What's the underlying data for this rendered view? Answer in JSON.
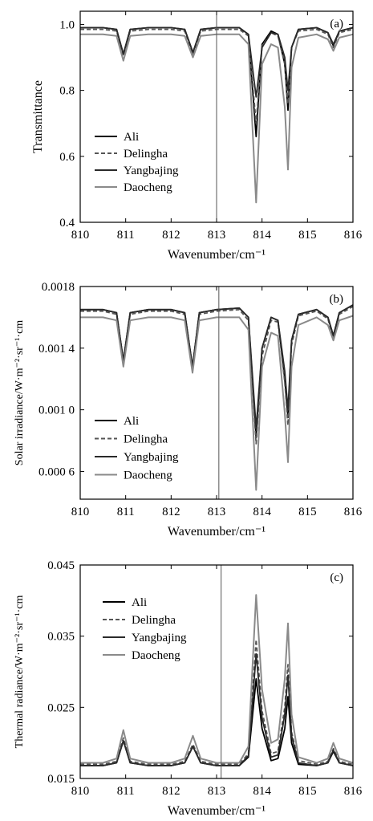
{
  "colors": {
    "Ali": "#000000",
    "Delingha": "#555555",
    "Yangbajing": "#2a2a2a",
    "Daocheng": "#8a8a8a"
  },
  "chart_data": [
    {
      "type": "line",
      "panel_label": "(a)",
      "xlabel": "Wavenumber/cm⁻¹",
      "ylabel": "Transmittance",
      "xlim": [
        810,
        816
      ],
      "ylim": [
        0.4,
        1.04
      ],
      "xticks": [
        810,
        811,
        812,
        813,
        814,
        815,
        816
      ],
      "xtick_labels": [
        "810",
        "811",
        "812",
        "813",
        "814",
        "815",
        "816"
      ],
      "yticks": [
        0.4,
        0.6,
        0.8,
        1.0
      ],
      "ytick_labels": [
        "0.4",
        "0.6",
        "0.8",
        "1.0"
      ],
      "vline": 813.0,
      "grid": false,
      "legend_position": "lower-left",
      "x": [
        810.0,
        810.5,
        810.8,
        810.95,
        811.1,
        811.5,
        812.0,
        812.3,
        812.48,
        812.65,
        813.0,
        813.5,
        813.7,
        813.87,
        814.0,
        814.2,
        814.35,
        814.5,
        814.57,
        814.65,
        814.8,
        815.2,
        815.45,
        815.57,
        815.7,
        816.0
      ],
      "series": [
        {
          "name": "Ali",
          "dash": "",
          "values": [
            0.99,
            0.99,
            0.985,
            0.91,
            0.985,
            0.99,
            0.99,
            0.985,
            0.915,
            0.985,
            0.99,
            0.99,
            0.97,
            0.66,
            0.94,
            0.98,
            0.97,
            0.88,
            0.74,
            0.93,
            0.985,
            0.99,
            0.975,
            0.935,
            0.98,
            0.99
          ]
        },
        {
          "name": "Delingha",
          "dash": "5,3",
          "values": [
            0.985,
            0.985,
            0.98,
            0.905,
            0.98,
            0.985,
            0.985,
            0.98,
            0.91,
            0.98,
            0.985,
            0.985,
            0.965,
            0.7,
            0.935,
            0.975,
            0.965,
            0.88,
            0.76,
            0.93,
            0.98,
            0.985,
            0.97,
            0.93,
            0.975,
            0.985
          ]
        },
        {
          "name": "Yangbajing",
          "dash": "",
          "values": [
            0.99,
            0.99,
            0.985,
            0.91,
            0.985,
            0.99,
            0.99,
            0.985,
            0.915,
            0.985,
            0.99,
            0.99,
            0.97,
            0.78,
            0.93,
            0.975,
            0.97,
            0.9,
            0.8,
            0.93,
            0.985,
            0.99,
            0.975,
            0.94,
            0.98,
            0.99
          ]
        },
        {
          "name": "Daocheng",
          "dash": "",
          "values": [
            0.97,
            0.97,
            0.965,
            0.89,
            0.965,
            0.97,
            0.97,
            0.965,
            0.9,
            0.965,
            0.97,
            0.97,
            0.94,
            0.46,
            0.88,
            0.94,
            0.93,
            0.75,
            0.56,
            0.87,
            0.96,
            0.97,
            0.955,
            0.92,
            0.96,
            0.97
          ]
        }
      ]
    },
    {
      "type": "line",
      "panel_label": "(b)",
      "xlabel": "Wavenumber/cm⁻¹",
      "ylabel": "Solar irradiance/W·m⁻²·sr⁻¹·cm",
      "xlim": [
        810,
        816
      ],
      "ylim": [
        0.00042,
        0.0018
      ],
      "xticks": [
        810,
        811,
        812,
        813,
        814,
        815,
        816
      ],
      "xtick_labels": [
        "810",
        "811",
        "812",
        "813",
        "814",
        "815",
        "816"
      ],
      "yticks": [
        0.0006,
        0.001,
        0.0014,
        0.0018
      ],
      "ytick_labels": [
        "0.000 6",
        "0.001 0",
        "0.001 4",
        "0.0018"
      ],
      "vline": 813.05,
      "grid": false,
      "legend_position": "lower-left",
      "x": [
        810.0,
        810.5,
        810.8,
        810.95,
        811.1,
        811.5,
        812.0,
        812.3,
        812.47,
        812.62,
        813.0,
        813.5,
        813.7,
        813.87,
        814.0,
        814.2,
        814.35,
        814.5,
        814.57,
        814.65,
        814.8,
        815.2,
        815.45,
        815.57,
        815.7,
        816.0
      ],
      "series": [
        {
          "name": "Ali",
          "dash": "",
          "values": [
            0.00165,
            0.00165,
            0.00163,
            0.00132,
            0.00163,
            0.00165,
            0.00165,
            0.00163,
            0.00128,
            0.00163,
            0.00165,
            0.00166,
            0.0016,
            0.00082,
            0.0014,
            0.0016,
            0.00158,
            0.0012,
            0.00095,
            0.00145,
            0.00162,
            0.00165,
            0.0016,
            0.00148,
            0.00163,
            0.00168
          ]
        },
        {
          "name": "Delingha",
          "dash": "5,3",
          "values": [
            0.00164,
            0.00164,
            0.00162,
            0.00131,
            0.00162,
            0.00164,
            0.00164,
            0.00162,
            0.00127,
            0.00162,
            0.00164,
            0.00165,
            0.00158,
            0.00078,
            0.00135,
            0.00158,
            0.00157,
            0.00118,
            0.0009,
            0.00142,
            0.00161,
            0.00164,
            0.00159,
            0.00146,
            0.00162,
            0.00167
          ]
        },
        {
          "name": "Yangbajing",
          "dash": "",
          "values": [
            0.00165,
            0.00165,
            0.00163,
            0.00132,
            0.00163,
            0.00165,
            0.00165,
            0.00163,
            0.00128,
            0.00163,
            0.00165,
            0.00166,
            0.0016,
            0.00088,
            0.0014,
            0.0016,
            0.00158,
            0.00125,
            0.001,
            0.00145,
            0.00162,
            0.00165,
            0.0016,
            0.00148,
            0.00163,
            0.00168
          ]
        },
        {
          "name": "Daocheng",
          "dash": "",
          "values": [
            0.0016,
            0.0016,
            0.00158,
            0.00128,
            0.00158,
            0.0016,
            0.0016,
            0.00158,
            0.00124,
            0.00158,
            0.0016,
            0.0016,
            0.00152,
            0.00048,
            0.00128,
            0.0015,
            0.00148,
            0.00098,
            0.00066,
            0.00128,
            0.00155,
            0.0016,
            0.00155,
            0.00145,
            0.00158,
            0.00161
          ]
        }
      ]
    },
    {
      "type": "line",
      "panel_label": "(c)",
      "xlabel": "Wavenumber/cm⁻¹",
      "ylabel": "Thermal radiance/W·m⁻²·sr⁻¹·cm",
      "xlim": [
        810,
        816
      ],
      "ylim": [
        0.015,
        0.045
      ],
      "xticks": [
        810,
        811,
        812,
        813,
        814,
        815,
        816
      ],
      "xtick_labels": [
        "810",
        "811",
        "812",
        "813",
        "814",
        "815",
        "816"
      ],
      "yticks": [
        0.015,
        0.025,
        0.035,
        0.045
      ],
      "ytick_labels": [
        "0.015",
        "0.025",
        "0.035",
        "0.045"
      ],
      "vline": 813.1,
      "grid": false,
      "legend_position": "upper-left",
      "x": [
        810.0,
        810.5,
        810.8,
        810.95,
        811.1,
        811.5,
        812.0,
        812.3,
        812.48,
        812.65,
        813.0,
        813.5,
        813.7,
        813.87,
        814.0,
        814.2,
        814.35,
        814.5,
        814.57,
        814.65,
        814.8,
        815.2,
        815.45,
        815.57,
        815.7,
        816.0
      ],
      "series": [
        {
          "name": "Ali",
          "dash": "",
          "values": [
            0.0168,
            0.0168,
            0.0172,
            0.0203,
            0.0172,
            0.0168,
            0.0168,
            0.0172,
            0.0195,
            0.0172,
            0.0168,
            0.0168,
            0.018,
            0.029,
            0.022,
            0.0175,
            0.0178,
            0.022,
            0.0265,
            0.02,
            0.017,
            0.0168,
            0.0172,
            0.0188,
            0.0172,
            0.0168
          ]
        },
        {
          "name": "Delingha",
          "dash": "5,3",
          "values": [
            0.017,
            0.017,
            0.0174,
            0.0207,
            0.0174,
            0.017,
            0.017,
            0.0174,
            0.0198,
            0.0174,
            0.017,
            0.017,
            0.0185,
            0.0345,
            0.0245,
            0.0185,
            0.0188,
            0.025,
            0.031,
            0.0215,
            0.0175,
            0.017,
            0.0174,
            0.0192,
            0.0174,
            0.017
          ]
        },
        {
          "name": "Yangbajing",
          "dash": "",
          "values": [
            0.0168,
            0.0168,
            0.0172,
            0.0203,
            0.0172,
            0.0168,
            0.0168,
            0.0172,
            0.0195,
            0.0172,
            0.0168,
            0.0168,
            0.0182,
            0.0325,
            0.0235,
            0.018,
            0.0183,
            0.024,
            0.0295,
            0.021,
            0.0172,
            0.0168,
            0.0172,
            0.019,
            0.0172,
            0.0168
          ]
        },
        {
          "name": "Daocheng",
          "dash": "",
          "values": [
            0.0172,
            0.0172,
            0.0178,
            0.0218,
            0.0178,
            0.0172,
            0.0172,
            0.0178,
            0.021,
            0.0178,
            0.0172,
            0.0172,
            0.0195,
            0.0408,
            0.0275,
            0.02,
            0.0205,
            0.029,
            0.0368,
            0.024,
            0.018,
            0.0172,
            0.0178,
            0.02,
            0.0178,
            0.0172
          ]
        }
      ]
    }
  ]
}
